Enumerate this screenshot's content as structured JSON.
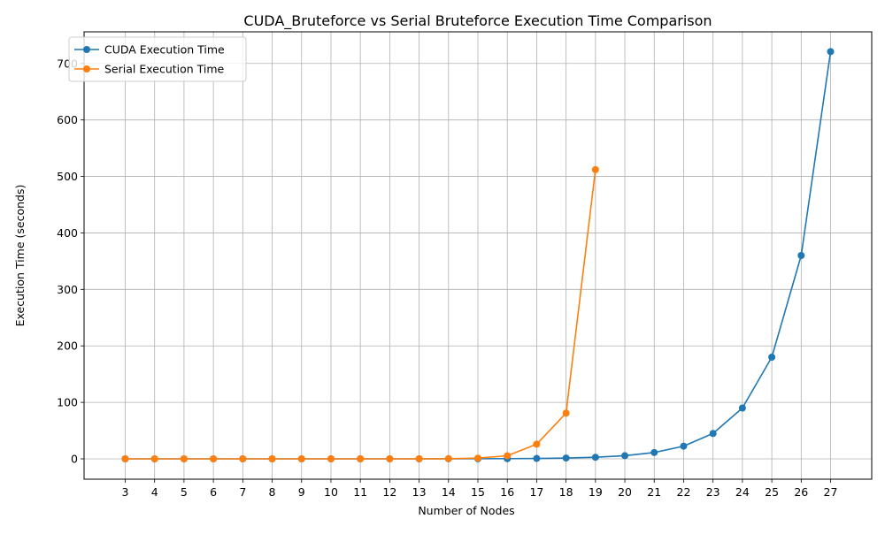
{
  "chart_data": {
    "type": "line",
    "title": "CUDA_Bruteforce vs Serial Bruteforce Execution Time Comparison",
    "xlabel": "Number of Nodes",
    "ylabel": "Execution Time (seconds)",
    "x": [
      3,
      4,
      5,
      6,
      7,
      8,
      9,
      10,
      11,
      12,
      13,
      14,
      15,
      16,
      17,
      18,
      19,
      20,
      21,
      22,
      23,
      24,
      25,
      26,
      27
    ],
    "xlim": [
      1.6,
      28.4
    ],
    "ylim": [
      -36,
      756
    ],
    "yticks": [
      0,
      100,
      200,
      300,
      400,
      500,
      600,
      700
    ],
    "grid": true,
    "legend_position": "top-left",
    "series": [
      {
        "name": "CUDA Execution Time",
        "color": "#1f77b4",
        "x": [
          3,
          4,
          5,
          6,
          7,
          8,
          9,
          10,
          11,
          12,
          13,
          14,
          15,
          16,
          17,
          18,
          19,
          20,
          21,
          22,
          23,
          24,
          25,
          26,
          27
        ],
        "values": [
          0,
          0,
          0,
          0,
          0,
          0,
          0,
          0,
          0,
          0,
          0,
          0.1,
          0.2,
          0.4,
          0.7,
          1.4,
          2.8,
          5.6,
          11.2,
          22.5,
          45,
          90,
          180,
          360,
          721
        ]
      },
      {
        "name": "Serial Execution Time",
        "color": "#ff7f0e",
        "x": [
          3,
          4,
          5,
          6,
          7,
          8,
          9,
          10,
          11,
          12,
          13,
          14,
          15,
          16,
          17,
          18,
          19
        ],
        "values": [
          0,
          0,
          0,
          0,
          0,
          0,
          0,
          0,
          0,
          0,
          0.1,
          0.3,
          1.2,
          5.5,
          26,
          81,
          512
        ]
      }
    ]
  }
}
